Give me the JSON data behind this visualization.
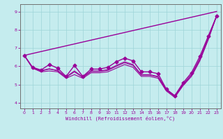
{
  "xlabel": "Windchill (Refroidissement éolien,°C)",
  "background_color": "#c5ecee",
  "line_color": "#990099",
  "grid_color": "#9dd4d8",
  "xlim": [
    -0.5,
    23.5
  ],
  "ylim": [
    3.7,
    9.4
  ],
  "yticks": [
    4,
    5,
    6,
    7,
    8,
    9
  ],
  "xticks": [
    0,
    1,
    2,
    3,
    4,
    5,
    6,
    7,
    8,
    9,
    10,
    11,
    12,
    13,
    14,
    15,
    16,
    17,
    18,
    19,
    20,
    21,
    22,
    23
  ],
  "series": [
    {
      "x": [
        0,
        23
      ],
      "y": [
        6.6,
        9.0
      ],
      "marker": null,
      "linewidth": 1.0
    },
    {
      "x": [
        0,
        1,
        2,
        3,
        4,
        5,
        6,
        7,
        8,
        9,
        10,
        11,
        12,
        13,
        14,
        15,
        16,
        17,
        18,
        19,
        20,
        21,
        22,
        23
      ],
      "y": [
        6.6,
        5.95,
        5.8,
        6.1,
        5.9,
        5.45,
        6.05,
        5.45,
        5.85,
        5.85,
        5.95,
        6.25,
        6.45,
        6.3,
        5.7,
        5.7,
        5.6,
        4.75,
        4.4,
        5.1,
        5.65,
        6.55,
        7.65,
        8.75
      ],
      "marker": "D",
      "linewidth": 1.0
    },
    {
      "x": [
        0,
        1,
        2,
        3,
        4,
        5,
        6,
        7,
        8,
        9,
        10,
        11,
        12,
        13,
        14,
        15,
        16,
        17,
        18,
        19,
        20,
        21,
        22,
        23
      ],
      "y": [
        6.6,
        5.9,
        5.7,
        5.75,
        5.7,
        5.35,
        5.55,
        5.35,
        5.65,
        5.65,
        5.7,
        5.9,
        6.1,
        5.95,
        5.45,
        5.45,
        5.35,
        4.65,
        4.3,
        4.95,
        5.45,
        6.3,
        7.45,
        8.75
      ],
      "marker": null,
      "linewidth": 0.8
    },
    {
      "x": [
        0,
        1,
        2,
        3,
        4,
        5,
        6,
        7,
        8,
        9,
        10,
        11,
        12,
        13,
        14,
        15,
        16,
        17,
        18,
        19,
        20,
        21,
        22,
        23
      ],
      "y": [
        6.6,
        5.9,
        5.75,
        5.85,
        5.78,
        5.4,
        5.7,
        5.4,
        5.72,
        5.72,
        5.78,
        6.0,
        6.2,
        6.05,
        5.52,
        5.52,
        5.42,
        4.7,
        4.35,
        5.0,
        5.52,
        6.38,
        7.52,
        8.75
      ],
      "marker": null,
      "linewidth": 0.8
    },
    {
      "x": [
        0,
        1,
        2,
        3,
        4,
        5,
        6,
        7,
        8,
        9,
        10,
        11,
        12,
        13,
        14,
        15,
        16,
        17,
        18,
        19,
        20,
        21,
        22,
        23
      ],
      "y": [
        6.6,
        5.92,
        5.77,
        5.87,
        5.75,
        5.42,
        5.75,
        5.42,
        5.75,
        5.75,
        5.82,
        6.05,
        6.25,
        6.1,
        5.55,
        5.55,
        5.45,
        4.72,
        4.38,
        5.02,
        5.55,
        6.42,
        7.55,
        8.75
      ],
      "marker": null,
      "linewidth": 0.8
    }
  ]
}
